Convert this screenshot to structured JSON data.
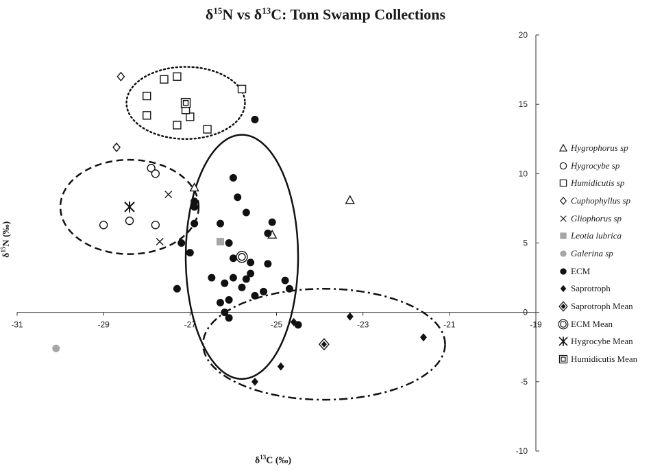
{
  "chart_data": {
    "type": "scatter",
    "title_parts": {
      "a": "δ",
      "b": "15",
      "c": "N vs δ",
      "d": "13",
      "e": "C: Tom Swamp Collections"
    },
    "xlabel_parts": {
      "a": "δ",
      "b": "13",
      "c": "C (‰)"
    },
    "ylabel_parts": {
      "a": "δ",
      "b": "15",
      "c": "N (‰)"
    },
    "xlim": [
      -31,
      -19
    ],
    "ylim": [
      -10,
      20
    ],
    "x_ticks": [
      "-31",
      "-29",
      "-27",
      "-25",
      "-23",
      "-21",
      "-19"
    ],
    "y_ticks": [
      "-10",
      "-5",
      "0",
      "5",
      "10",
      "15",
      "20"
    ],
    "legend_position": "right",
    "series": [
      {
        "name": "Hygrophorus sp",
        "italic": true,
        "marker": "triangle",
        "points": [
          [
            -26.9,
            9.0
          ],
          [
            -25.1,
            5.6
          ],
          [
            -23.3,
            8.1
          ]
        ]
      },
      {
        "name": "Hygrocybe sp",
        "italic": true,
        "marker": "circle-open",
        "points": [
          [
            -29.0,
            6.3
          ],
          [
            -28.4,
            6.6
          ],
          [
            -27.8,
            6.3
          ],
          [
            -27.9,
            10.4
          ],
          [
            -27.8,
            10.0
          ]
        ]
      },
      {
        "name": "Humidicutis sp",
        "italic": true,
        "marker": "square-open",
        "points": [
          [
            -27.6,
            16.8
          ],
          [
            -27.3,
            17.0
          ],
          [
            -28.0,
            15.6
          ],
          [
            -28.0,
            14.2
          ],
          [
            -27.3,
            13.5
          ],
          [
            -27.0,
            14.1
          ],
          [
            -27.1,
            14.6
          ],
          [
            -26.6,
            13.2
          ],
          [
            -25.8,
            16.1
          ]
        ]
      },
      {
        "name": "Cuphophyllus sp",
        "italic": true,
        "marker": "diamond-open",
        "points": [
          [
            -28.6,
            17.0
          ],
          [
            -28.7,
            11.9
          ]
        ]
      },
      {
        "name": "Gliophorus sp",
        "italic": true,
        "marker": "x",
        "points": [
          [
            -27.5,
            8.5
          ],
          [
            -27.7,
            5.1
          ]
        ]
      },
      {
        "name": "Leotia lubrica",
        "italic": true,
        "marker": "square-gray",
        "points": [
          [
            -26.3,
            5.1
          ]
        ]
      },
      {
        "name": "Galerina sp",
        "italic": true,
        "marker": "circle-gray",
        "points": [
          [
            -30.1,
            -2.6
          ]
        ]
      },
      {
        "name": "ECM",
        "italic": false,
        "marker": "circle-filled",
        "points": [
          [
            -25.5,
            13.9
          ],
          [
            -26.0,
            9.7
          ],
          [
            -25.9,
            8.3
          ],
          [
            -26.9,
            8.0
          ],
          [
            -26.9,
            7.6
          ],
          [
            -25.7,
            7.2
          ],
          [
            -25.1,
            6.5
          ],
          [
            -26.9,
            6.4
          ],
          [
            -26.3,
            6.4
          ],
          [
            -25.2,
            5.7
          ],
          [
            -27.2,
            5.0
          ],
          [
            -26.1,
            5.0
          ],
          [
            -26.0,
            3.9
          ],
          [
            -27.0,
            4.3
          ],
          [
            -25.6,
            3.6
          ],
          [
            -25.2,
            3.5
          ],
          [
            -25.6,
            2.8
          ],
          [
            -26.5,
            2.5
          ],
          [
            -26.0,
            2.5
          ],
          [
            -25.7,
            2.4
          ],
          [
            -26.2,
            2.1
          ],
          [
            -24.8,
            2.3
          ],
          [
            -27.3,
            1.7
          ],
          [
            -25.8,
            1.8
          ],
          [
            -24.7,
            1.7
          ],
          [
            -25.3,
            1.5
          ],
          [
            -25.5,
            1.2
          ],
          [
            -26.1,
            0.9
          ],
          [
            -26.3,
            0.7
          ],
          [
            -26.2,
            0.0
          ],
          [
            -26.1,
            -0.4
          ],
          [
            -24.5,
            -0.9
          ]
        ]
      },
      {
        "name": "Saprotroph",
        "italic": false,
        "marker": "diamond-filled",
        "points": [
          [
            -23.3,
            -0.3
          ],
          [
            -24.6,
            -0.7
          ],
          [
            -21.6,
            -1.8
          ],
          [
            -24.9,
            -3.9
          ],
          [
            -25.5,
            -5.0
          ]
        ]
      },
      {
        "name": "Saprotroph Mean",
        "italic": false,
        "marker": "diamond-mean",
        "points": [
          [
            -23.9,
            -2.3
          ]
        ]
      },
      {
        "name": "ECM Mean",
        "italic": false,
        "marker": "circle-mean",
        "points": [
          [
            -25.8,
            4.0
          ]
        ]
      },
      {
        "name": "Hygrocybe Mean",
        "italic": false,
        "marker": "asterisk",
        "points": [
          [
            -28.4,
            7.6
          ]
        ]
      },
      {
        "name": "Humidicutis Mean",
        "italic": false,
        "marker": "square-mean",
        "points": [
          [
            -27.1,
            15.1
          ]
        ]
      }
    ],
    "ellipses": [
      {
        "group": "Humidicutis",
        "style": "dotted",
        "cx": -27.1,
        "cy": 15.1,
        "rx": 1.37,
        "ry": 2.6
      },
      {
        "group": "Hygrocybe",
        "style": "dashed",
        "cx": -28.4,
        "cy": 7.6,
        "rx": 1.6,
        "ry": 3.4
      },
      {
        "group": "ECM",
        "style": "solid",
        "cx": -25.8,
        "cy": 4.0,
        "rx": 1.3,
        "ry": 8.8
      },
      {
        "group": "Saprotroph",
        "style": "dash-dot",
        "cx": -23.9,
        "cy": -2.3,
        "rx": 2.8,
        "ry": 4.0
      }
    ]
  }
}
